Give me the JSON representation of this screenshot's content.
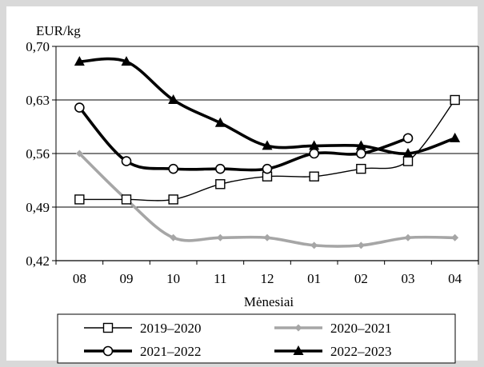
{
  "chart_data": {
    "type": "line",
    "title": "",
    "ylabel": "EUR/kg",
    "xlabel": "Mėnesiai",
    "categories": [
      "08",
      "09",
      "10",
      "11",
      "12",
      "01",
      "02",
      "03",
      "04"
    ],
    "ylim": [
      0.42,
      0.7
    ],
    "yticks": [
      0.42,
      0.49,
      0.56,
      0.63,
      0.7
    ],
    "ytick_labels": [
      "0,42",
      "0,49",
      "0,56",
      "0,63",
      "0,70"
    ],
    "grid": "horizontal",
    "legend_position": "bottom",
    "series": [
      {
        "name": "2019–2020",
        "values": [
          0.5,
          0.5,
          0.5,
          0.52,
          0.53,
          0.53,
          0.54,
          0.55,
          0.63
        ],
        "color": "#000000",
        "marker": "open-square",
        "line_weight": "thin"
      },
      {
        "name": "2020–2021",
        "values": [
          0.56,
          0.5,
          0.45,
          0.45,
          0.45,
          0.44,
          0.44,
          0.45,
          0.45
        ],
        "color": "#a6a6a6",
        "marker": "diamond",
        "line_weight": "thick"
      },
      {
        "name": "2021–2022",
        "values": [
          0.62,
          0.55,
          0.54,
          0.54,
          0.54,
          0.56,
          0.56,
          0.58,
          null
        ],
        "color": "#000000",
        "marker": "open-circle",
        "line_weight": "thick"
      },
      {
        "name": "2022–2023",
        "values": [
          0.68,
          0.68,
          0.63,
          0.6,
          0.57,
          0.57,
          0.57,
          0.56,
          0.58
        ],
        "color": "#000000",
        "marker": "filled-triangle",
        "line_weight": "thick"
      }
    ]
  }
}
